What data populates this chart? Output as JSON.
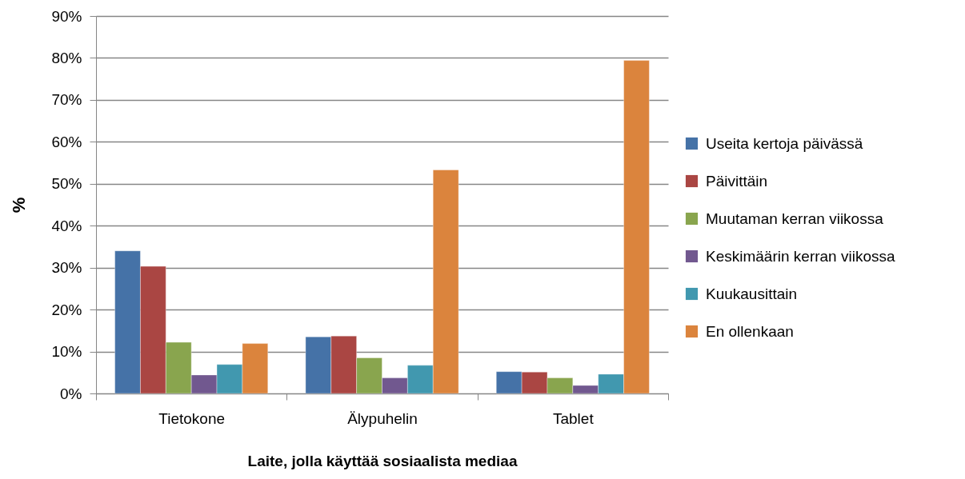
{
  "chart_data": {
    "type": "bar",
    "ylabel": "%",
    "xlabel": "Laite, jolla käyttää sosiaalista mediaa",
    "categories": [
      "Tietokone",
      "Älypuhelin",
      "Tablet"
    ],
    "series": [
      {
        "name": "Useita kertoja päivässä",
        "color": "#4572a7",
        "values": [
          34.0,
          13.5,
          5.2
        ]
      },
      {
        "name": "Päivittäin",
        "color": "#aa4643",
        "values": [
          30.3,
          13.7,
          5.1
        ]
      },
      {
        "name": "Muutaman kerran viikossa",
        "color": "#89a54e",
        "values": [
          12.2,
          8.5,
          3.7
        ]
      },
      {
        "name": "Keskimäärin kerran viikossa",
        "color": "#71588f",
        "values": [
          4.4,
          3.7,
          1.9
        ]
      },
      {
        "name": "Kuukausittain",
        "color": "#4198af",
        "values": [
          6.9,
          6.7,
          4.6
        ]
      },
      {
        "name": "En ollenkaan",
        "color": "#db843d",
        "values": [
          11.9,
          53.3,
          79.4
        ]
      }
    ],
    "ylim": [
      0,
      90
    ],
    "yticks": [
      {
        "value": 0,
        "label": "0%"
      },
      {
        "value": 10,
        "label": "10%"
      },
      {
        "value": 20,
        "label": "20%"
      },
      {
        "value": 30,
        "label": "30%"
      },
      {
        "value": 40,
        "label": "40%"
      },
      {
        "value": 50,
        "label": "50%"
      },
      {
        "value": 60,
        "label": "60%"
      },
      {
        "value": 70,
        "label": "70%"
      },
      {
        "value": 80,
        "label": "80%"
      },
      {
        "value": 90,
        "label": "90%"
      }
    ],
    "grid": "y",
    "legend": "right"
  }
}
